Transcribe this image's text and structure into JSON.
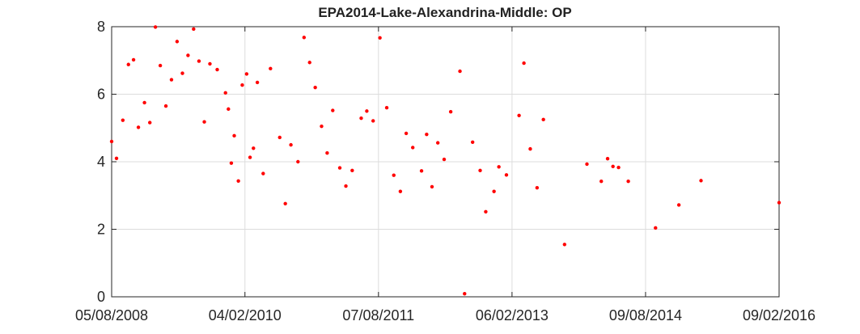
{
  "chart_data": {
    "type": "scatter",
    "title": "EPA2014-Lake-Alexandrina-Middle: OP",
    "xlabel": "",
    "ylabel": "",
    "x_type": "date",
    "xlim": [
      "2008-08-05",
      "2016-02-09"
    ],
    "ylim": [
      0,
      8
    ],
    "x_ticks": [
      "2008-08-05",
      "2010-02-04",
      "2011-08-07",
      "2013-02-06",
      "2014-08-09",
      "2016-02-09"
    ],
    "x_tick_labels": [
      "05/08/2008",
      "04/02/2010",
      "07/08/2011",
      "06/02/2013",
      "09/08/2014",
      "09/02/2016"
    ],
    "y_ticks": [
      0,
      2,
      4,
      6,
      8
    ],
    "y_tick_labels": [
      "0",
      "2",
      "4",
      "6",
      "8"
    ],
    "grid": true,
    "marker_color": "#ff0000",
    "series": [
      {
        "points": [
          [
            "2008-08-05",
            4.6
          ],
          [
            "2008-08-25",
            4.1
          ],
          [
            "2008-09-20",
            5.23
          ],
          [
            "2008-10-13",
            6.88
          ],
          [
            "2008-11-03",
            7.02
          ],
          [
            "2008-11-23",
            5.02
          ],
          [
            "2008-12-18",
            5.75
          ],
          [
            "2009-01-09",
            5.16
          ],
          [
            "2009-02-01",
            7.99
          ],
          [
            "2009-02-21",
            6.85
          ],
          [
            "2009-03-16",
            5.65
          ],
          [
            "2009-04-08",
            6.43
          ],
          [
            "2009-05-01",
            7.56
          ],
          [
            "2009-05-23",
            6.62
          ],
          [
            "2009-06-15",
            7.15
          ],
          [
            "2009-07-08",
            7.93
          ],
          [
            "2009-07-30",
            6.98
          ],
          [
            "2009-08-21",
            5.18
          ],
          [
            "2009-09-13",
            6.9
          ],
          [
            "2009-10-13",
            6.73
          ],
          [
            "2009-11-16",
            6.04
          ],
          [
            "2009-11-28",
            5.56
          ],
          [
            "2009-12-10",
            3.96
          ],
          [
            "2009-12-22",
            4.77
          ],
          [
            "2010-01-08",
            3.43
          ],
          [
            "2010-01-24",
            6.27
          ],
          [
            "2010-02-11",
            6.6
          ],
          [
            "2010-02-25",
            4.13
          ],
          [
            "2010-03-11",
            4.4
          ],
          [
            "2010-03-27",
            6.35
          ],
          [
            "2010-04-20",
            3.65
          ],
          [
            "2010-05-20",
            6.76
          ],
          [
            "2010-06-27",
            4.72
          ],
          [
            "2010-07-20",
            2.76
          ],
          [
            "2010-08-12",
            4.5
          ],
          [
            "2010-09-10",
            4.0
          ],
          [
            "2010-10-05",
            7.68
          ],
          [
            "2010-10-28",
            6.94
          ],
          [
            "2010-11-20",
            6.2
          ],
          [
            "2010-12-16",
            5.05
          ],
          [
            "2011-01-08",
            4.26
          ],
          [
            "2011-01-31",
            5.52
          ],
          [
            "2011-03-01",
            3.82
          ],
          [
            "2011-03-26",
            3.28
          ],
          [
            "2011-04-21",
            3.74
          ],
          [
            "2011-05-28",
            5.29
          ],
          [
            "2011-06-20",
            5.5
          ],
          [
            "2011-07-16",
            5.21
          ],
          [
            "2011-08-13",
            7.67
          ],
          [
            "2011-09-10",
            5.6
          ],
          [
            "2011-10-09",
            3.6
          ],
          [
            "2011-11-05",
            3.12
          ],
          [
            "2011-11-29",
            4.84
          ],
          [
            "2011-12-26",
            4.42
          ],
          [
            "2012-01-31",
            3.73
          ],
          [
            "2012-02-21",
            4.81
          ],
          [
            "2012-03-14",
            3.26
          ],
          [
            "2012-04-07",
            4.56
          ],
          [
            "2012-05-03",
            4.07
          ],
          [
            "2012-05-30",
            5.48
          ],
          [
            "2012-07-07",
            6.68
          ],
          [
            "2012-07-26",
            0.09
          ],
          [
            "2012-08-28",
            4.58
          ],
          [
            "2012-09-28",
            3.74
          ],
          [
            "2012-10-21",
            2.52
          ],
          [
            "2012-11-24",
            3.12
          ],
          [
            "2012-12-14",
            3.85
          ],
          [
            "2013-01-14",
            3.61
          ],
          [
            "2013-03-07",
            5.37
          ],
          [
            "2013-03-27",
            6.92
          ],
          [
            "2013-04-22",
            4.38
          ],
          [
            "2013-05-20",
            3.23
          ],
          [
            "2013-06-15",
            5.25
          ],
          [
            "2013-09-10",
            1.55
          ],
          [
            "2013-12-11",
            3.93
          ],
          [
            "2014-02-08",
            3.42
          ],
          [
            "2014-03-06",
            4.09
          ],
          [
            "2014-03-28",
            3.86
          ],
          [
            "2014-04-20",
            3.83
          ],
          [
            "2014-05-30",
            3.42
          ],
          [
            "2014-09-19",
            2.04
          ],
          [
            "2014-12-24",
            2.72
          ],
          [
            "2015-03-25",
            3.44
          ],
          [
            "2016-02-09",
            2.79
          ]
        ]
      }
    ]
  }
}
